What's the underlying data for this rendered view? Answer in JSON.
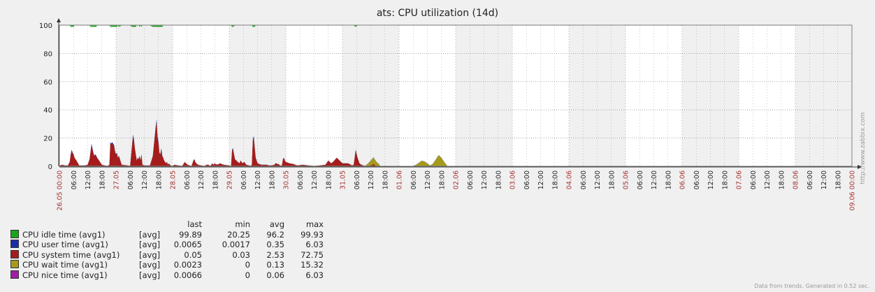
{
  "chart_data": {
    "type": "area",
    "title": "ats: CPU utilization (14d)",
    "ylim": [
      0,
      100
    ],
    "y_ticks": [
      "0",
      "20",
      "40",
      "60",
      "80",
      "100"
    ],
    "grid": true,
    "x_start_label": "26.05 00:00",
    "x_end_label": "09.06 00:00",
    "x_tick_labels": [
      "26.05 00:00",
      "06:00",
      "12:00",
      "18:00",
      "27.05",
      "06:00",
      "12:00",
      "18:00",
      "28.05",
      "06:00",
      "12:00",
      "18:00",
      "29.05",
      "06:00",
      "12:00",
      "18:00",
      "30.05",
      "06:00",
      "12:00",
      "18:00",
      "31.05",
      "06:00",
      "12:00",
      "18:00",
      "01.06",
      "06:00",
      "12:00",
      "18:00",
      "02.06",
      "06:00",
      "12:00",
      "18:00",
      "03.06",
      "06:00",
      "12:00",
      "18:00",
      "04.06",
      "06:00",
      "12:00",
      "18:00",
      "05.06",
      "06:00",
      "12:00",
      "18:00",
      "06.06",
      "06:00",
      "12:00",
      "18:00",
      "07.06",
      "06:00",
      "12:00",
      "18:00",
      "08.06",
      "06:00",
      "12:00",
      "18:00",
      "09.06 00:00"
    ],
    "time_hours": [
      0,
      3,
      6,
      9,
      11,
      12,
      13,
      14,
      15,
      16,
      17,
      18,
      21,
      24,
      27,
      30,
      32,
      33,
      34,
      35,
      36,
      37,
      38,
      39,
      40,
      42,
      45,
      48,
      51,
      53,
      54,
      55,
      56,
      57,
      58,
      59,
      60,
      61,
      62,
      63,
      66,
      72,
      75,
      77,
      78,
      79,
      80,
      81,
      82,
      83,
      84,
      85,
      86,
      87,
      88,
      90,
      96,
      99,
      102,
      103,
      104,
      105,
      106,
      107,
      108,
      109,
      110,
      111,
      112,
      113,
      114,
      115,
      116,
      117,
      118,
      119,
      120,
      122,
      126,
      130,
      131,
      132,
      133,
      134,
      135,
      136,
      138,
      140,
      141,
      142,
      143,
      144,
      145,
      147,
      150,
      154,
      156,
      158,
      159,
      160,
      161,
      162,
      163,
      164,
      165,
      166,
      167,
      168,
      170,
      174,
      180,
      181,
      182,
      183,
      184,
      186,
      189,
      191,
      192,
      193,
      194,
      196,
      198,
      201,
      203,
      204,
      205,
      206,
      207,
      208,
      210,
      214,
      220,
      222,
      225,
      228,
      229,
      230,
      231,
      232,
      233,
      234,
      235,
      236,
      237,
      238,
      239,
      240,
      244,
      248,
      250,
      252,
      258,
      264,
      270,
      276,
      282,
      285,
      288,
      290,
      294,
      300,
      306,
      309,
      310,
      312,
      314,
      316,
      318,
      320,
      322,
      324,
      327,
      330,
      333,
      335,
      336,
      337,
      338,
      339,
      340,
      342,
      345,
      348,
      350,
      351,
      352,
      353,
      354,
      357,
      360,
      363,
      366,
      369,
      372,
      375,
      378,
      381,
      384,
      387,
      390,
      393,
      396,
      399,
      402,
      405,
      408,
      411,
      414,
      417,
      420,
      423,
      426,
      429,
      432,
      435,
      438,
      441,
      444,
      447,
      450,
      453,
      456,
      459,
      462,
      465,
      468,
      471,
      474,
      477,
      480,
      483,
      486,
      489,
      492,
      495,
      498,
      501,
      504,
      507,
      510,
      513,
      516,
      519,
      522,
      525,
      528,
      531,
      534,
      537,
      540,
      543,
      546,
      549,
      552,
      555,
      558,
      561,
      564,
      567,
      570,
      573,
      576,
      579,
      582,
      585,
      588,
      591,
      594,
      597,
      600,
      603,
      606,
      609,
      612,
      615,
      618,
      621,
      624,
      627,
      630,
      633,
      636,
      639,
      642,
      645,
      648,
      651,
      654,
      657,
      660,
      663,
      666,
      669,
      672,
      675,
      678,
      681,
      684,
      687,
      690,
      693,
      696,
      699,
      702,
      705,
      708,
      711,
      714,
      717,
      720,
      723,
      726,
      729,
      732,
      735,
      738,
      741,
      744,
      747,
      750,
      753,
      756,
      759,
      762,
      765,
      768,
      771,
      774,
      777,
      780,
      783,
      786,
      789,
      792,
      795,
      798,
      801,
      804,
      807,
      810,
      813,
      816,
      819,
      822,
      825,
      828,
      831,
      834,
      837,
      840
    ],
    "series": [
      {
        "name": "CPU idle time (avg1)",
        "color": "#1aa51a"
      },
      {
        "name": "CPU user time (avg1)",
        "color": "#1c2ea6"
      },
      {
        "name": "CPU system time (avg1)",
        "color": "#a61c1c"
      },
      {
        "name": "CPU wait time (avg1)",
        "color": "#a69a1c"
      },
      {
        "name": "CPU nice time (avg1)",
        "color": "#a01ca6"
      }
    ],
    "system_time_series": [
      0.3,
      1,
      0.5,
      0.5,
      3,
      8,
      11,
      9,
      8,
      6,
      5,
      4,
      0.5,
      0.5,
      0.5,
      1,
      5,
      10,
      15,
      12,
      9,
      7,
      8,
      7,
      6,
      4,
      1,
      0.5,
      0.3,
      1,
      16,
      15,
      16,
      15,
      14,
      10,
      8,
      9,
      6,
      7,
      1,
      0.5,
      0.3,
      14,
      21,
      18,
      12,
      8,
      4,
      6,
      5,
      7,
      4,
      8,
      1,
      0.5,
      0.5,
      7,
      26,
      31,
      20,
      16,
      9,
      8,
      12,
      7,
      6,
      4,
      3,
      2,
      3,
      1,
      2,
      1,
      0.5,
      0.3,
      0.3,
      1,
      0.5,
      0.3,
      1,
      2,
      3,
      2,
      1.5,
      1,
      0.5,
      0.3,
      2,
      4,
      5,
      3,
      2,
      1,
      0.5,
      0.3,
      1,
      1,
      0.5,
      0.3,
      1,
      2,
      1,
      1.5,
      2,
      1,
      1.5,
      1,
      2,
      1,
      0.5,
      0.3,
      0.3,
      11,
      12,
      5,
      3,
      2,
      4,
      3,
      2,
      3,
      1,
      0.5,
      0.3,
      1,
      18,
      20,
      13,
      6,
      2,
      1,
      1,
      0.5,
      0.5,
      1,
      2,
      2,
      1.5,
      1.5,
      1,
      0.5,
      0.3,
      1,
      5,
      6,
      4,
      3,
      2,
      1.5,
      1,
      0.5,
      1,
      0.5,
      0.3,
      0.5,
      1,
      4,
      2,
      3,
      6,
      2,
      2,
      1,
      0.5,
      1,
      11,
      6,
      2,
      1,
      0.5,
      0.3,
      0.3,
      0.5,
      1.5,
      0.5,
      0.3,
      0.3,
      0.3,
      0.3,
      0.3,
      0.3,
      0.3,
      0.3,
      0.3,
      0.3,
      0.3,
      0.3,
      0.3,
      0.3,
      0.3,
      0.3,
      0.3,
      0.3,
      0.3,
      0.3,
      0.3,
      0.3,
      0.3,
      0.3,
      0.3,
      0.3,
      0.3,
      0.3,
      0.3,
      0.3,
      0.3,
      0.3,
      0.3,
      0.3,
      0.3,
      0.3,
      0.3,
      0.3,
      0.3,
      0.3,
      0.3,
      0.3,
      0.3,
      0.3,
      0.3,
      0.3,
      0.3,
      0.3,
      0.3,
      0.3,
      0.3,
      0.3,
      0.3,
      0.3,
      0.3,
      0.3,
      0.3,
      0.3,
      0.3,
      0.3,
      0.3,
      0.3,
      0.3,
      0.3,
      0.3,
      0.3,
      0.3,
      0.3,
      0.3,
      0.3,
      0.3,
      0.3,
      0.3,
      0.3,
      0.3,
      0.3,
      0.3,
      0.3,
      0.3,
      0.3,
      0.3,
      0.3,
      0.3,
      0.3,
      0.3,
      0.3,
      0.3,
      0.3,
      0.3,
      0.3,
      0.3,
      0.3,
      0.3,
      0.3,
      0.3,
      0.3,
      0.3,
      0.3,
      0.3,
      0.3,
      0.3,
      0.3,
      0.3,
      0.3,
      0.3,
      0.3,
      0.3,
      0.3,
      0.3,
      0.3,
      0.3,
      0.3,
      0.3,
      0.3,
      0.3,
      0.3,
      0.3,
      0.3,
      0.3,
      0.3,
      0.3,
      0.3,
      0.3,
      0.3,
      0.3,
      0.3,
      0.3,
      0.3,
      0.3,
      0.3,
      0.3,
      0.3,
      0.3,
      0.3,
      0.3,
      0.3,
      0.3,
      0.3,
      0.3,
      0.3,
      0.3,
      0.3,
      0.3,
      0.3,
      0.3,
      0.3,
      0.3,
      0.3
    ],
    "user_time_note": "",
    "stats": [
      {
        "name": "CPU idle time (avg1)",
        "agg": "[avg]",
        "last": "99.89",
        "min": "20.25",
        "avg": "96.2",
        "max": "99.93"
      },
      {
        "name": "CPU user time (avg1)",
        "agg": "[avg]",
        "last": "0.0065",
        "min": "0.0017",
        "avg": "0.35",
        "max": "6.03"
      },
      {
        "name": "CPU system time (avg1)",
        "agg": "[avg]",
        "last": "0.05",
        "min": "0.03",
        "avg": "2.53",
        "max": "72.75"
      },
      {
        "name": "CPU wait time (avg1)",
        "agg": "[avg]",
        "last": "0.0023",
        "min": "0",
        "avg": "0.13",
        "max": "15.32"
      },
      {
        "name": "CPU nice time (avg1)",
        "agg": "[avg]",
        "last": "0.0066",
        "min": "0",
        "avg": "0.06",
        "max": "6.03"
      }
    ],
    "legend_header": {
      "last": "last",
      "min": "min",
      "avg": "avg",
      "max": "max"
    }
  },
  "footer": "Data from trends. Generated in 0.52 sec.",
  "side_url": "http://www.zabbix.com"
}
